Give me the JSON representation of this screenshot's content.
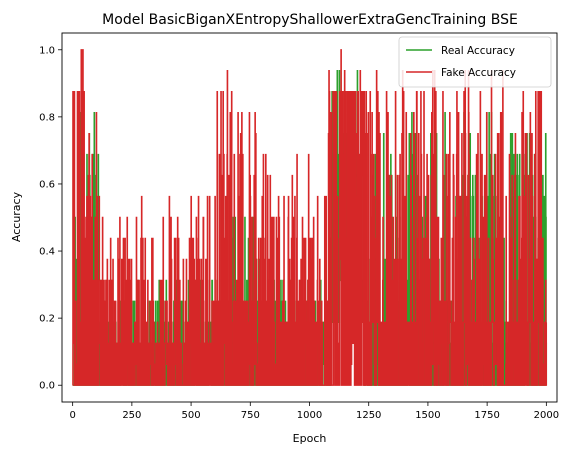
{
  "chart_data": {
    "type": "line",
    "title": "Model BasicBiganXEntropyShallowerExtraGencTraining BSE",
    "xlabel": "Epoch",
    "ylabel": "Accuracy",
    "xlim": [
      -45,
      2045
    ],
    "ylim": [
      -0.05,
      1.05
    ],
    "x_ticks": [
      0,
      250,
      500,
      750,
      1000,
      1250,
      1500,
      1750,
      2000
    ],
    "x_tick_labels": [
      "0",
      "250",
      "500",
      "750",
      "1000",
      "1250",
      "1500",
      "1750",
      "2000"
    ],
    "y_ticks": [
      0.0,
      0.2,
      0.4,
      0.6,
      0.8,
      1.0
    ],
    "y_tick_labels": [
      "0.0",
      "0.2",
      "0.4",
      "0.6",
      "0.8",
      "1.0"
    ],
    "grid": false,
    "legend_position": "top-right",
    "series": [
      {
        "name": "Real Accuracy",
        "color": "#2ca02c",
        "x_start": 0,
        "x_end": 2000,
        "segments": [
          {
            "x0": 0,
            "x1": 15,
            "low": 0.0,
            "high": 1.0,
            "base": 0.5
          },
          {
            "x0": 15,
            "x1": 60,
            "low": 0.0,
            "high": 0.94,
            "base": 0.3
          },
          {
            "x0": 60,
            "x1": 110,
            "low": 0.0,
            "high": 0.81,
            "base": 0.25
          },
          {
            "x0": 110,
            "x1": 650,
            "low": 0.0,
            "high": 0.31,
            "base": 0.1
          },
          {
            "x0": 650,
            "x1": 800,
            "low": 0.0,
            "high": 0.5,
            "base": 0.15
          },
          {
            "x0": 800,
            "x1": 1090,
            "low": 0.0,
            "high": 0.31,
            "base": 0.1
          },
          {
            "x0": 1090,
            "x1": 1230,
            "low": 0.19,
            "high": 1.0,
            "base": 0.7
          },
          {
            "x0": 1230,
            "x1": 2000,
            "low": 0.0,
            "high": 0.81,
            "base": 0.15
          }
        ]
      },
      {
        "name": "Fake Accuracy",
        "color": "#d62728",
        "x_start": 0,
        "x_end": 2000,
        "segments": [
          {
            "x0": 0,
            "x1": 50,
            "low": 0.0,
            "high": 1.0,
            "base": 0.9
          },
          {
            "x0": 50,
            "x1": 120,
            "low": 0.0,
            "high": 0.94,
            "base": 0.3
          },
          {
            "x0": 120,
            "x1": 600,
            "low": 0.0,
            "high": 0.56,
            "base": 0.15
          },
          {
            "x0": 600,
            "x1": 830,
            "low": 0.0,
            "high": 0.94,
            "base": 0.25
          },
          {
            "x0": 830,
            "x1": 1080,
            "low": 0.0,
            "high": 0.69,
            "base": 0.2
          },
          {
            "x0": 1080,
            "x1": 1230,
            "low": 0.0,
            "high": 1.0,
            "base": 0.85
          },
          {
            "x0": 1230,
            "x1": 2000,
            "low": 0.0,
            "high": 0.94,
            "base": 0.2
          }
        ]
      }
    ]
  }
}
